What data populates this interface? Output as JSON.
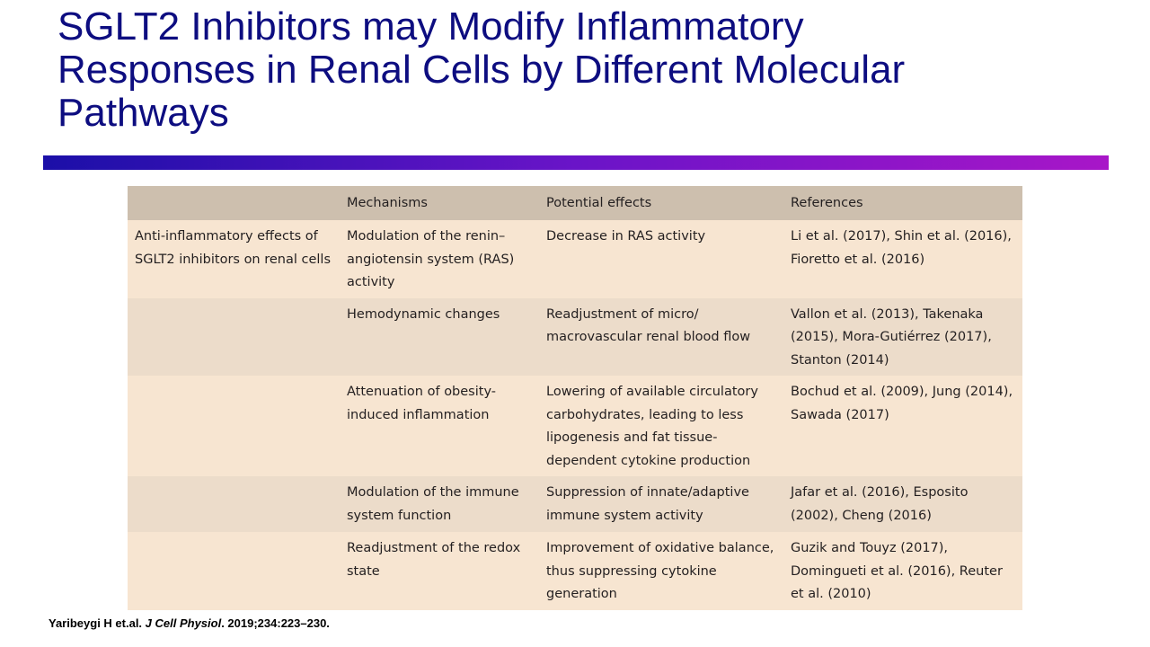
{
  "title": {
    "line1": "SGLT2 Inhibitors may Modify Inflammatory",
    "line2": "Responses in Renal Cells by Different Molecular",
    "line3": "Pathways"
  },
  "table": {
    "headers": [
      "",
      "Mechanisms",
      "Potential effects",
      "References"
    ],
    "rows": [
      {
        "category": "Anti-inflammatory effects of SGLT2 inhibitors on renal cells",
        "mechanism": "Modulation of the renin–angiotensin system (RAS) activity",
        "effect": "Decrease in RAS activity",
        "references": "Li et al. (2017), Shin et al. (2016), Fioretto et al. (2016)"
      },
      {
        "category": "",
        "mechanism": "Hemodynamic changes",
        "effect": "Readjustment of micro/ macrovascular renal blood flow",
        "references": "Vallon et al. (2013), Takenaka (2015), Mora-Gutiérrez (2017), Stanton (2014)"
      },
      {
        "category": "",
        "mechanism": "Attenuation of obesity-induced inflammation",
        "effect": "Lowering of available circulatory carbohydrates, leading to less lipogenesis and fat tissue-dependent cytokine production",
        "references": "Bochud et al. (2009), Jung (2014), Sawada (2017)"
      },
      {
        "category": "",
        "mechanism": "Modulation of the immune system function",
        "effect": "Suppression of innate/adaptive immune system activity",
        "references": "Jafar et al. (2016), Esposito (2002), Cheng (2016)"
      },
      {
        "category": "",
        "mechanism": "Readjustment of the redox state",
        "effect": "Improvement of oxidative balance, thus suppressing cytokine generation",
        "references": "Guzik and Touyz (2017), Domingueti et al. (2016), Reuter et al. (2010)"
      }
    ]
  },
  "citation": {
    "authors": "Yaribeygi H et.al. ",
    "journal": "J Cell Physiol",
    "details": ". 2019;234:223–230."
  },
  "colors": {
    "title": "#0d0d80",
    "bar_start": "#1b0fa8",
    "bar_end": "#a816c8",
    "table_header": "#cdbfae",
    "row_light": "#f7e5d1",
    "row_dark": "#ecdcca"
  }
}
